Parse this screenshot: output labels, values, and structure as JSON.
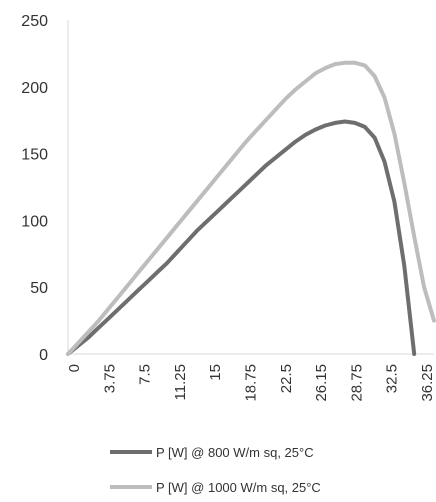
{
  "chart_data": {
    "type": "line",
    "title": "",
    "xlabel": "",
    "ylabel": "",
    "ylim": [
      0,
      250
    ],
    "yticks": [
      0,
      50,
      100,
      150,
      200,
      250
    ],
    "xtick_labels": [
      "0",
      "3.75",
      "7.5",
      "11.25",
      "15",
      "18.75",
      "22.5",
      "26.15",
      "28.75",
      "32.5",
      "36.25"
    ],
    "xlim": [
      0,
      37
    ],
    "grid": false,
    "legend_position": "bottom",
    "series": [
      {
        "name": "P [W] @ 800 W/m sq, 25°C",
        "color": "#6e6e6e",
        "x": [
          0,
          1,
          2,
          3,
          4,
          5,
          6,
          7,
          8,
          9,
          10,
          11,
          12,
          13,
          14,
          15,
          16,
          17,
          18,
          19,
          20,
          21,
          22,
          23,
          24,
          25,
          26,
          27,
          28,
          29,
          30,
          31,
          32,
          33,
          34,
          35
        ],
        "y": [
          0,
          6,
          12,
          19,
          26,
          33,
          40,
          47,
          54,
          61,
          68,
          76,
          84,
          92,
          99,
          106,
          113,
          120,
          127,
          134,
          141,
          147,
          153,
          159,
          164,
          168,
          171,
          173,
          174,
          173,
          170,
          162,
          144,
          114,
          66,
          0
        ]
      },
      {
        "name": "P [W] @ 1000 W/m sq,  25°C",
        "color": "#bdbdbd",
        "x": [
          0,
          1,
          2,
          3,
          4,
          5,
          6,
          7,
          8,
          9,
          10,
          11,
          12,
          13,
          14,
          15,
          16,
          17,
          18,
          19,
          20,
          21,
          22,
          23,
          24,
          25,
          26,
          27,
          28,
          29,
          30,
          31,
          32,
          33,
          34,
          35,
          36,
          37
        ],
        "y": [
          0,
          8,
          16,
          24,
          33,
          42,
          51,
          60,
          69,
          78,
          87,
          96,
          105,
          114,
          123,
          132,
          141,
          150,
          159,
          167,
          175,
          183,
          191,
          198,
          204,
          210,
          214,
          217,
          218,
          218,
          216,
          208,
          192,
          165,
          128,
          88,
          50,
          25
        ]
      }
    ]
  }
}
